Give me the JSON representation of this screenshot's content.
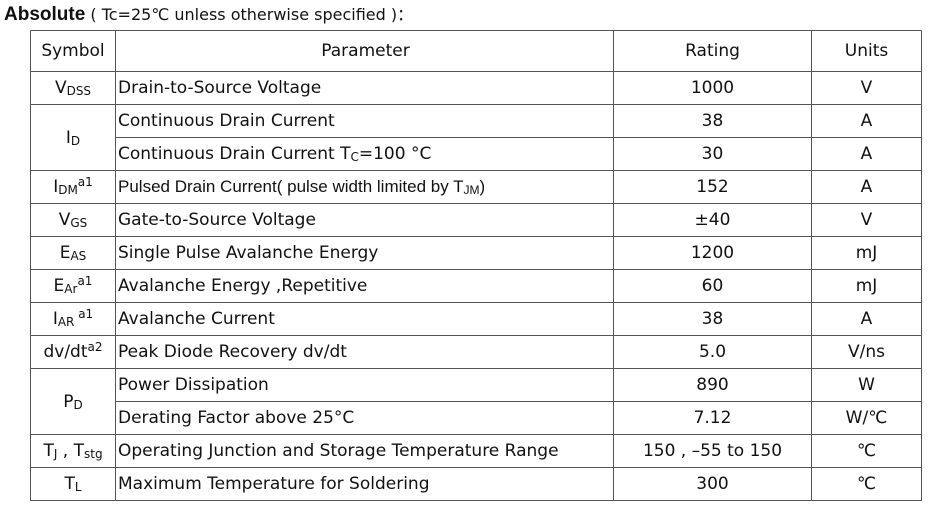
{
  "heading": {
    "bold": "Absolute",
    "condition": "( Tc=25℃  unless otherwise specified )："
  },
  "table": {
    "headers": {
      "symbol": "Symbol",
      "parameter": "Parameter",
      "rating": "Rating",
      "units": "Units"
    },
    "rows": [
      {
        "sym": "V",
        "sub": "DSS",
        "sup": "",
        "param": "Drain-to-Source Voltage",
        "rating": "1000",
        "unit": "V"
      },
      {
        "sym": "I",
        "sub": "D",
        "sup": "",
        "param": "Continuous Drain Current",
        "rating": "38",
        "unit": "A"
      },
      {
        "param_a": "Continuous Drain Current T",
        "param_sub": "C",
        "param_b": "=100 °C",
        "rating": "30",
        "unit": "A"
      },
      {
        "sym": "I",
        "sub": "DM",
        "sup": "a1",
        "param_a": "Pulsed Drain Current( pulse width limited by T",
        "param_sub": "JM",
        "param_b": ")",
        "rating": "152",
        "unit": "A"
      },
      {
        "sym": "V",
        "sub": "GS",
        "sup": "",
        "param": "Gate-to-Source Voltage",
        "rating": "±40",
        "unit": "V"
      },
      {
        "sym": "E",
        "sub": "AS",
        "sup": "",
        "param": "Single Pulse Avalanche Energy",
        "rating": "1200",
        "unit": "mJ"
      },
      {
        "sym": "E",
        "sub": "Ar",
        "sup": "a1",
        "param": "Avalanche Energy ,Repetitive",
        "rating": "60",
        "unit": "mJ"
      },
      {
        "sym": "I",
        "sub": "AR",
        "sup": " a1",
        "param": "Avalanche Current",
        "rating": "38",
        "unit": "A"
      },
      {
        "sym": "dv/dt",
        "sub": "",
        "sup": "a2",
        "param": "Peak Diode Recovery dv/dt",
        "rating": "5.0",
        "unit": "V/ns"
      },
      {
        "sym": "P",
        "sub": "D",
        "sup": "",
        "param": "Power Dissipation",
        "rating": "890",
        "unit": "W"
      },
      {
        "param": "Derating Factor above 25°C",
        "rating": "7.12",
        "unit": "W/℃"
      },
      {
        "sym": "T",
        "sub": "J",
        "sym2": " , T",
        "sub2": "stg",
        "param": "Operating Junction and Storage Temperature Range",
        "rating": "150 , –55 to 150",
        "unit": "℃"
      },
      {
        "sym": "T",
        "sub": "L",
        "sup": "",
        "param": "Maximum Temperature for Soldering",
        "rating": "300",
        "unit": "℃"
      }
    ]
  }
}
